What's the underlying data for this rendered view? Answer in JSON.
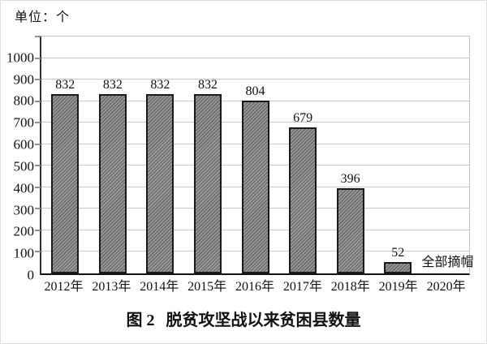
{
  "unit_label": "单位：个",
  "figure_title": {
    "prefix": "图 2",
    "text": "脱贫攻坚战以来贫困县数量"
  },
  "chart_data": {
    "type": "bar",
    "title": "图 2 脱贫攻坚战以来贫困县数量",
    "unit": "单位：个",
    "categories": [
      "2012年",
      "2013年",
      "2014年",
      "2015年",
      "2016年",
      "2017年",
      "2018年",
      "2019年",
      "2020年"
    ],
    "values": [
      832,
      832,
      832,
      832,
      804,
      679,
      396,
      52,
      null
    ],
    "value_labels": [
      "832",
      "832",
      "832",
      "832",
      "804",
      "679",
      "396",
      "52",
      ""
    ],
    "annotation": {
      "text": "全部摘帽",
      "slot_index": 8
    },
    "xlabel": "",
    "ylabel": "",
    "ylim": [
      0,
      1100
    ],
    "yticks": [
      0,
      100,
      200,
      300,
      400,
      500,
      600,
      700,
      800,
      900,
      1000
    ],
    "grid": "horizontal",
    "legend": "none",
    "colors": {
      "bar_hatch_dark": "#6b6b6b",
      "bar_hatch_light": "#9e9e9e",
      "bar_border": "#1a1a1a",
      "gridline": "#c9c9c9",
      "axis": "#141414",
      "text": "#111111"
    }
  }
}
